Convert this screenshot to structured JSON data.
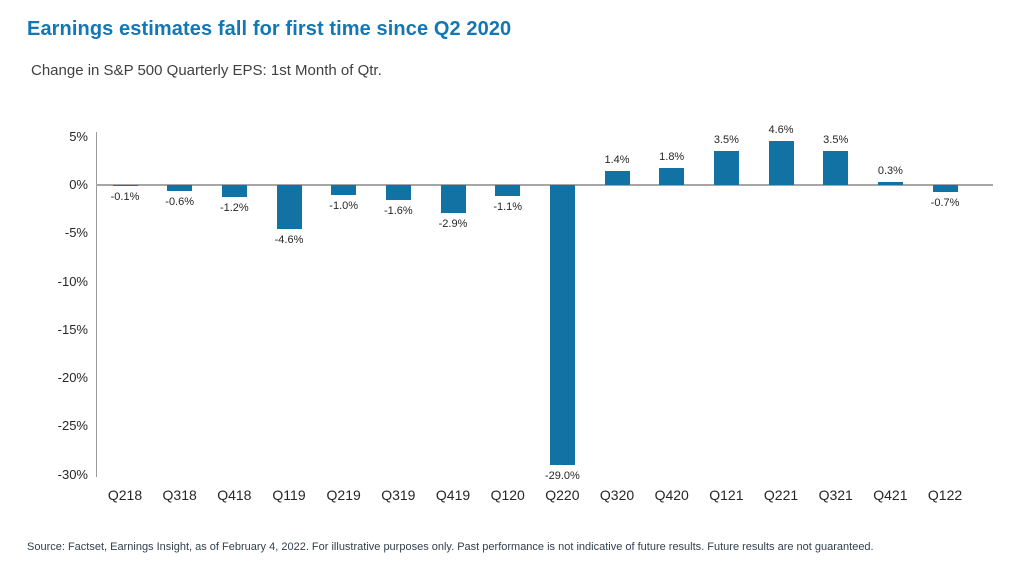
{
  "page": {
    "title": "Earnings estimates fall for first time since Q2 2020",
    "subtitle": "Change in S&P 500 Quarterly EPS: 1st Month of Qtr.",
    "source": "Source: Factset, Earnings Insight, as of February 4, 2022. For illustrative purposes only. Past performance is not indicative of future results. Future results are not guaranteed."
  },
  "colors": {
    "title_blue": "#1178b5",
    "bar_blue": "#1272a3",
    "axis_gray": "#a6a6a6",
    "label_dark": "#262626",
    "source_slate": "#33404d"
  },
  "chart_data": {
    "type": "bar",
    "title": "Earnings estimates fall for first time since Q2 2020",
    "subtitle": "Change in S&P 500 Quarterly EPS: 1st Month of Qtr.",
    "categories": [
      "Q218",
      "Q318",
      "Q418",
      "Q119",
      "Q219",
      "Q319",
      "Q419",
      "Q120",
      "Q220",
      "Q320",
      "Q420",
      "Q121",
      "Q221",
      "Q321",
      "Q421",
      "Q122"
    ],
    "values": [
      -0.1,
      -0.6,
      -1.2,
      -4.6,
      -1.0,
      -1.6,
      -2.9,
      -1.1,
      -29.0,
      1.4,
      1.8,
      3.5,
      4.6,
      3.5,
      0.3,
      -0.7
    ],
    "data_labels": [
      "-0.1%",
      "-0.6%",
      "-1.2%",
      "-4.6%",
      "-1.0%",
      "-1.6%",
      "-2.9%",
      "-1.1%",
      "-29.0%",
      "1.4%",
      "1.8%",
      "3.5%",
      "4.6%",
      "3.5%",
      "0.3%",
      "-0.7%"
    ],
    "xlabel": "",
    "ylabel": "",
    "ylim": [
      -30,
      5
    ],
    "yticks": [
      5,
      0,
      -5,
      -10,
      -15,
      -20,
      -25,
      -30
    ],
    "ytick_labels": [
      "5%",
      "0%",
      "-5%",
      "-10%",
      "-15%",
      "-20%",
      "-25%",
      "-30%"
    ],
    "grid": false,
    "legend": false,
    "bar_color": "#1272a3"
  }
}
